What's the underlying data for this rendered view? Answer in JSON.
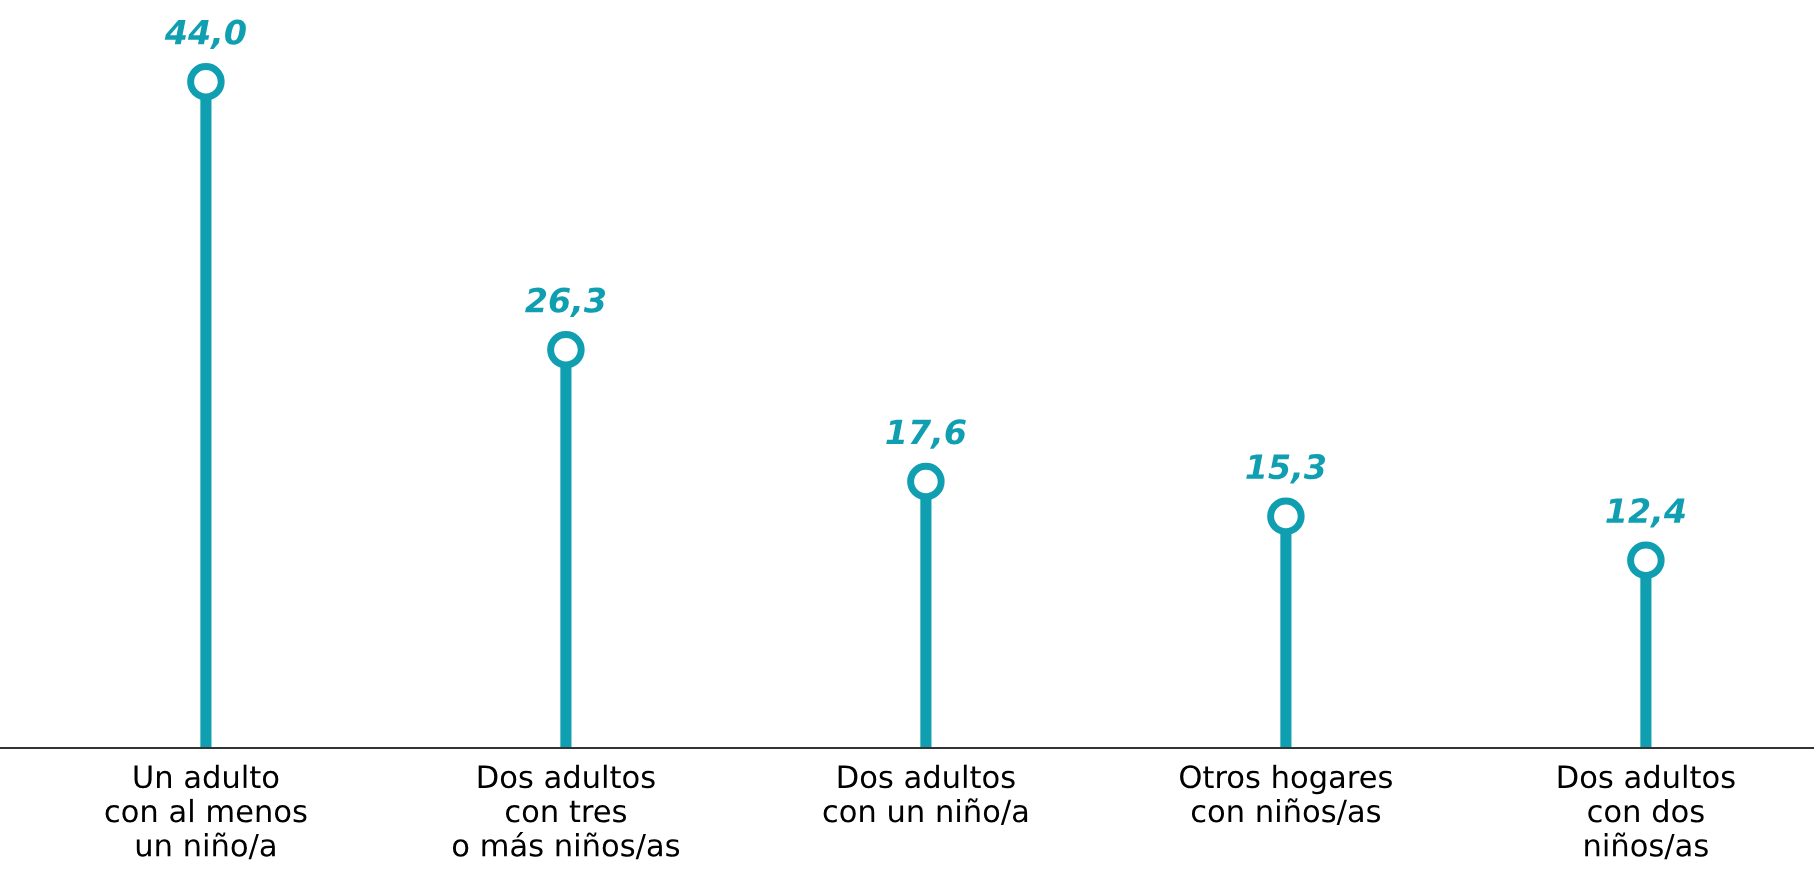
{
  "chart_data": {
    "type": "lollipop",
    "categories": [
      "Un adulto\ncon al menos\nun niño/a",
      "Dos adultos\ncon tres\no más niños/as",
      "Dos adultos\ncon un niño/a",
      "Otros hogares\ncon niños/as",
      "Dos adultos\ncon dos\nniños/as"
    ],
    "values": [
      44.0,
      26.3,
      17.6,
      15.3,
      12.4
    ],
    "value_labels": [
      "44,0",
      "26,3",
      "17,6",
      "15,3",
      "12,4"
    ],
    "color": "#109fb1",
    "marker": "circle"
  }
}
